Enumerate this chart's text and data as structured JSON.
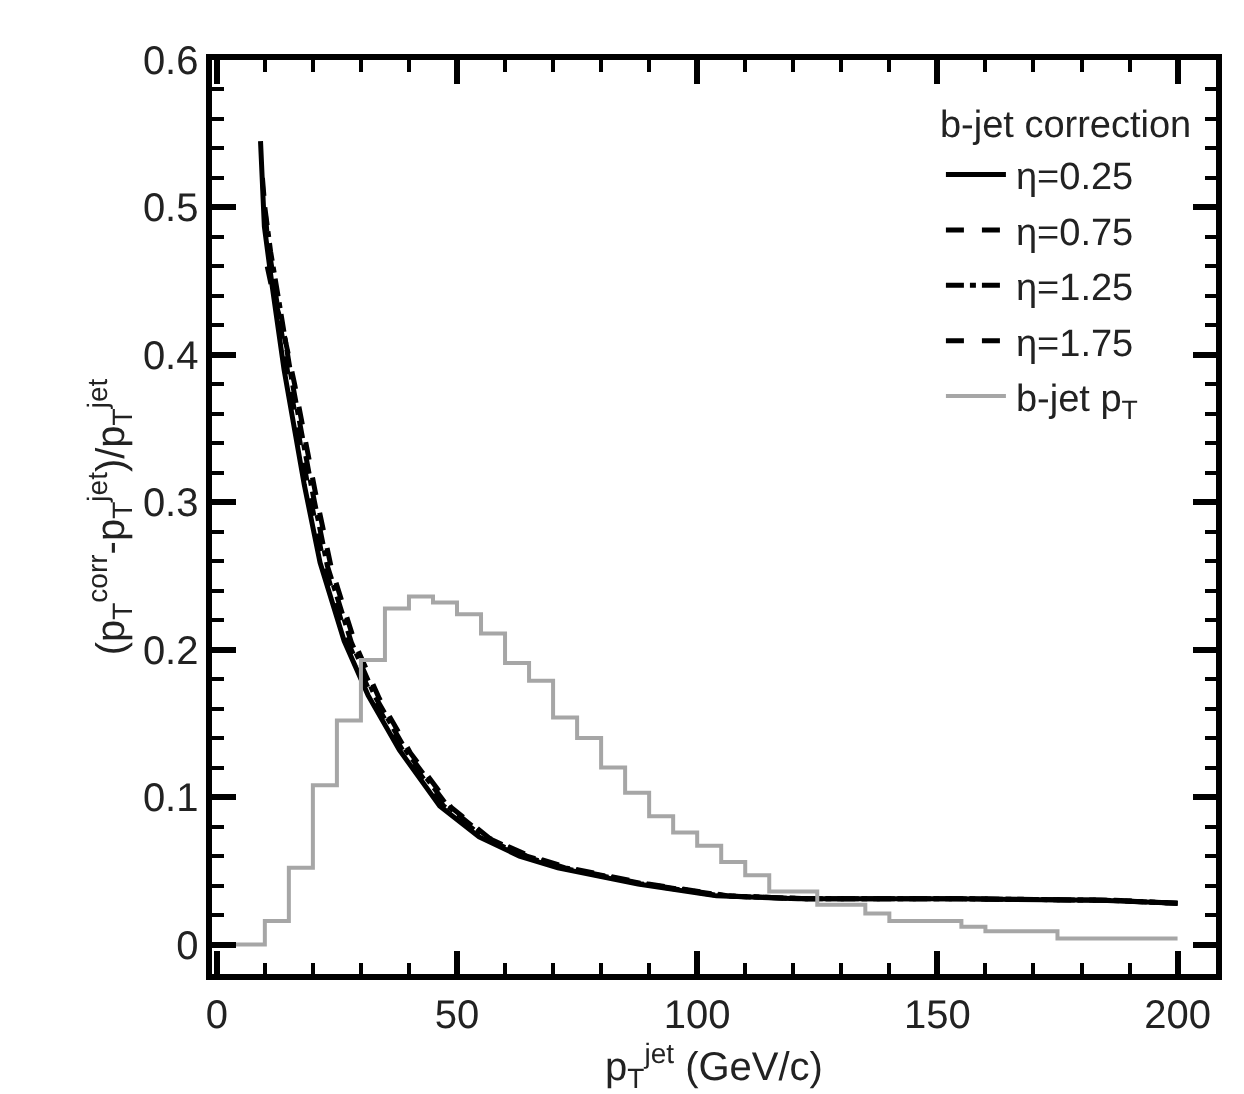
{
  "chart_data": {
    "type": "line",
    "xlabel": "p$_{T}$$^{jet}$ (GeV/c)",
    "ylabel": "(p$_{T}$$^{corr}$-p$_{T}$$^{jet}$)/p$_{T}$$^{jet}$",
    "legend_title": "b-jet correction",
    "legend": "top right",
    "xlim": [
      -1,
      208
    ],
    "xticks": [
      0,
      50,
      100,
      150,
      200
    ],
    "ylim": [
      -0.02,
      0.6
    ],
    "yticks": [
      0,
      0.1,
      0.2,
      0.3,
      0.4,
      0.5,
      0.6
    ],
    "series": [
      {
        "name": "η=0.25",
        "color": "#000000",
        "line_style": "solid",
        "x": [
          9.1,
          9.9,
          11.6,
          14,
          18.2,
          21.5,
          26.5,
          31.5,
          38,
          46.4,
          54.6,
          63,
          71,
          87.7,
          104,
          121,
          154,
          184,
          200
        ],
        "values": [
          0.545,
          0.487,
          0.445,
          0.39,
          0.312,
          0.259,
          0.206,
          0.169,
          0.132,
          0.094,
          0.073,
          0.06,
          0.052,
          0.041,
          0.033,
          0.031,
          0.031,
          0.03,
          0.028
        ]
      },
      {
        "name": "η=0.75",
        "color": "#000000",
        "line_style": "dashed",
        "x": [
          9.5,
          10.5,
          12.3,
          14.8,
          19,
          22.3,
          27.3,
          32.3,
          38.8,
          47.2,
          55.4,
          63.8,
          71.8,
          88.5,
          105,
          122,
          155,
          185,
          200
        ],
        "values": [
          0.52,
          0.48,
          0.44,
          0.387,
          0.31,
          0.258,
          0.205,
          0.168,
          0.131,
          0.094,
          0.073,
          0.06,
          0.052,
          0.041,
          0.033,
          0.031,
          0.031,
          0.03,
          0.028
        ]
      },
      {
        "name": "η=1.25",
        "color": "#000000",
        "line_style": "dashdot",
        "x": [
          10,
          11.2,
          13,
          15.5,
          19.8,
          23,
          28,
          33,
          39.5,
          48,
          56,
          64.5,
          72.5,
          89,
          106,
          123,
          156,
          186,
          200
        ],
        "values": [
          0.5,
          0.47,
          0.435,
          0.385,
          0.309,
          0.257,
          0.205,
          0.168,
          0.131,
          0.094,
          0.073,
          0.06,
          0.052,
          0.041,
          0.033,
          0.031,
          0.031,
          0.03,
          0.028
        ]
      },
      {
        "name": "η=1.75",
        "color": "#000000",
        "line_style": "dashed",
        "x": [
          10.5,
          11.8,
          13.6,
          16.2,
          20.5,
          23.8,
          28.8,
          33.8,
          40.3,
          48.8,
          56.8,
          65.2,
          73.2,
          89.8,
          106.5,
          123.5,
          157,
          187,
          200
        ],
        "values": [
          0.46,
          0.44,
          0.42,
          0.38,
          0.307,
          0.256,
          0.204,
          0.167,
          0.13,
          0.093,
          0.072,
          0.06,
          0.052,
          0.041,
          0.033,
          0.031,
          0.031,
          0.03,
          0.028
        ]
      },
      {
        "name": "b-jet p$_{T}$",
        "type": "histogram",
        "color": "#a6a6a6",
        "line_style": "solid",
        "bins": [
          0,
          5,
          10,
          15,
          20,
          25,
          30,
          35,
          40,
          45,
          50,
          55,
          60,
          65,
          70,
          75,
          80,
          85,
          90,
          95,
          100,
          105,
          110,
          115,
          120,
          125,
          130,
          135,
          140,
          145,
          150,
          155,
          160,
          165,
          170,
          175,
          180,
          185,
          190,
          195,
          200
        ],
        "values": [
          0,
          0,
          0.016,
          0.052,
          0.108,
          0.152,
          0.193,
          0.228,
          0.236,
          0.232,
          0.224,
          0.211,
          0.191,
          0.179,
          0.154,
          0.14,
          0.12,
          0.103,
          0.087,
          0.076,
          0.067,
          0.056,
          0.047,
          0.036,
          0.036,
          0.027,
          0.027,
          0.021,
          0.016,
          0.016,
          0.016,
          0.012,
          0.009,
          0.009,
          0.009,
          0.004,
          0.004,
          0.004,
          0.004,
          0.004
        ]
      }
    ]
  }
}
